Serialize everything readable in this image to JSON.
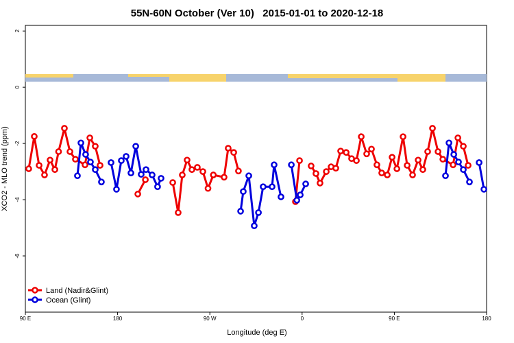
{
  "chart_data": {
    "type": "line",
    "title": "55N-60N October (Ver 10)   2015-01-01 to 2020-12-18",
    "x_label": "Longitude (deg E)",
    "y_label": "XCO2 - MLO trend (ppm)",
    "xlim": [
      90,
      540
    ],
    "xticks": [
      {
        "value": 90,
        "label": "90 E"
      },
      {
        "value": 180,
        "label": "180"
      },
      {
        "value": 270,
        "label": "90 W"
      },
      {
        "value": 360,
        "label": "0"
      },
      {
        "value": 450,
        "label": "90 E"
      },
      {
        "value": 540,
        "label": "180"
      }
    ],
    "ylim": [
      -8,
      2.2
    ],
    "yticks": [
      2,
      0,
      -2,
      -4,
      -6
    ],
    "legend": "bottom-left",
    "series": [
      {
        "name": "Land (Nadir&Glint)",
        "color": "#ee0000",
        "x": [
          93.3,
          98.7,
          103.4,
          108.7,
          114.1,
          118.8,
          122.4,
          128.1,
          133.5,
          138.8,
          148.2,
          152.9,
          158.2,
          162.9,
          null,
          199.7,
          207.1,
          null,
          233.8,
          239.1,
          243.1,
          247.8,
          252.5,
          257.8,
          263.2,
          268.2,
          273.4,
          283.9,
          287.9,
          293.3,
          297.9,
          null,
          353.5,
          357.5,
          null,
          368.8,
          373.5,
          377.5,
          383.6,
          388.3,
          392.9,
          397.6,
          403,
          408.3,
          413,
          417.7,
          423,
          427.7,
          433,
          437.7,
          443.1,
          447.8,
          452.5,
          458.5,
          462.5,
          467.8,
          473.2,
          477.8,
          482.5,
          487.2,
          492.6,
          497.3,
          507.3,
          512,
          517.3,
          522
        ],
        "values": [
          -2.9,
          -1.75,
          -2.78,
          -3.12,
          -2.59,
          -2.93,
          -2.29,
          -1.46,
          -2.29,
          -2.56,
          -2.76,
          -1.8,
          -2.1,
          -2.78,
          null,
          -3.8,
          -3.29,
          null,
          -3.39,
          -4.46,
          -3.12,
          -2.59,
          -2.93,
          -2.85,
          -3.0,
          -3.6,
          -3.12,
          -3.2,
          -2.17,
          -2.32,
          -2.98,
          null,
          -4.07,
          -2.61,
          null,
          -2.8,
          -3.07,
          -3.41,
          -3.0,
          -2.83,
          -2.88,
          -2.27,
          -2.32,
          -2.54,
          -2.61,
          -1.76,
          -2.37,
          -2.2,
          -2.76,
          -3.05,
          -3.12,
          -2.49,
          -2.9,
          -1.76,
          -2.78,
          -3.12,
          -2.59,
          -2.93,
          -2.29,
          -1.46,
          -2.29,
          -2.56,
          -2.76,
          -1.8,
          -2.1,
          -2.78
        ]
      },
      {
        "name": "Ocean (Glint)",
        "color": "#0000dd",
        "x": [
          140.8,
          144.2,
          148.8,
          153.5,
          158.2,
          164.2,
          null,
          173.6,
          178.9,
          183.6,
          188.3,
          193,
          197.7,
          203,
          207.7,
          213.7,
          219,
          222.4,
          null,
          300,
          302.6,
          308,
          313.3,
          317.4,
          322,
          330.7,
          332.7,
          339.4,
          null,
          349.5,
          354.9,
          358.2,
          363.5,
          null,
          499.9,
          503.3,
          508,
          512.6,
          517.3,
          523.3,
          null,
          532.7,
          537.4
        ],
        "values": [
          -3.15,
          -1.98,
          -2.39,
          -2.66,
          -2.93,
          -3.37,
          null,
          -2.68,
          -3.63,
          -2.61,
          -2.46,
          -3.05,
          -2.1,
          -3.1,
          -2.93,
          -3.12,
          -3.54,
          -3.24,
          null,
          -4.41,
          -3.71,
          -3.15,
          -4.93,
          -4.46,
          -3.54,
          -3.54,
          -2.76,
          -3.9,
          null,
          -2.76,
          -4.02,
          -3.83,
          -3.44,
          null,
          -3.15,
          -1.98,
          -2.39,
          -2.66,
          -2.93,
          -3.37,
          null,
          -2.68,
          -3.63
        ]
      }
    ]
  }
}
